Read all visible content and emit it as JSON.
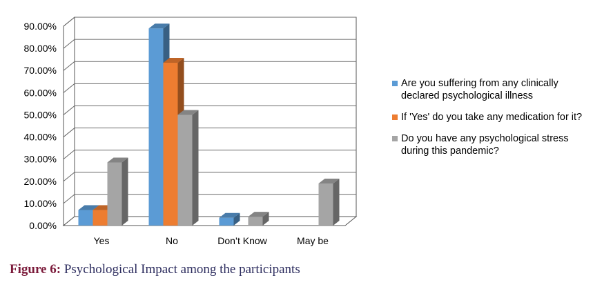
{
  "chart_data": {
    "type": "bar",
    "categories": [
      "Yes",
      "No",
      "Don’t Know",
      "May be"
    ],
    "series": [
      {
        "name": "Are you suffering from any clinically declared psychological illness",
        "values": [
          7.0,
          89.0,
          3.5,
          0
        ],
        "color": "#5b9bd5"
      },
      {
        "name": "If 'Yes' do you take any medication for it?",
        "values": [
          7.0,
          73.5,
          0,
          0
        ],
        "color": "#ed7d31"
      },
      {
        "name": "Do you have any psychological stress during this pandemic?",
        "values": [
          28.5,
          50.0,
          4.0,
          19.0
        ],
        "color": "#a5a5a5"
      }
    ],
    "yticks": [
      "0.00%",
      "10.00%",
      "20.00%",
      "30.00%",
      "40.00%",
      "50.00%",
      "60.00%",
      "70.00%",
      "80.00%",
      "90.00%"
    ],
    "ylim": [
      0,
      90
    ],
    "grid": true,
    "legend_position": "right",
    "style": "3d-clustered-column"
  },
  "caption": {
    "label": "Figure 6:",
    "text": "Psychological Impact among the participants"
  }
}
